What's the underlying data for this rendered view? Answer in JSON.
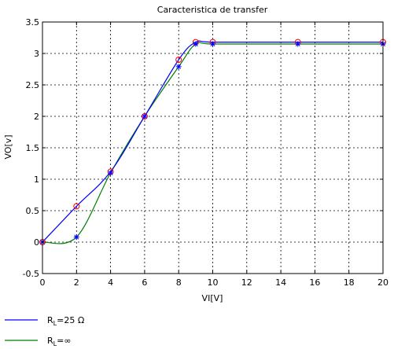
{
  "chart_data": {
    "type": "line",
    "title": "Caracteristica de transfer",
    "xlabel": "VI[V]",
    "ylabel": "VO[v]",
    "xlim": [
      0,
      20
    ],
    "ylim": [
      -0.5,
      3.5
    ],
    "xticks": [
      0,
      2,
      4,
      6,
      8,
      10,
      12,
      14,
      16,
      18,
      20
    ],
    "yticks": [
      -0.5,
      0,
      0.5,
      1,
      1.5,
      2,
      2.5,
      3,
      3.5
    ],
    "xtick_labels": [
      "0",
      "2",
      "4",
      "6",
      "8",
      "10",
      "12",
      "14",
      "16",
      "18",
      "20"
    ],
    "ytick_labels": [
      "-0.5",
      "0",
      "0.5",
      "1",
      "1.5",
      "2",
      "2.5",
      "3",
      "3.5"
    ],
    "grid": true,
    "legend_position": "bottom-left",
    "series": [
      {
        "name_main": "R",
        "name_sub": "L",
        "name_rest": "=25 Ω",
        "color": "#0000ff",
        "marker": "circle",
        "marker_color": "#ff0000",
        "x": [
          0,
          2,
          4,
          6,
          8,
          9,
          10,
          15,
          20
        ],
        "y": [
          0,
          0.57,
          1.12,
          2.0,
          2.9,
          3.18,
          3.18,
          3.18,
          3.18
        ]
      },
      {
        "name_main": "R",
        "name_sub": "L",
        "name_rest": "=∞",
        "color": "#008000",
        "marker": "star",
        "marker_color": "#0000ff",
        "x": [
          0,
          2,
          4,
          6,
          8,
          9,
          10,
          15,
          20
        ],
        "y": [
          0,
          0.08,
          1.1,
          2.0,
          2.79,
          3.15,
          3.15,
          3.15,
          3.15
        ]
      }
    ]
  }
}
